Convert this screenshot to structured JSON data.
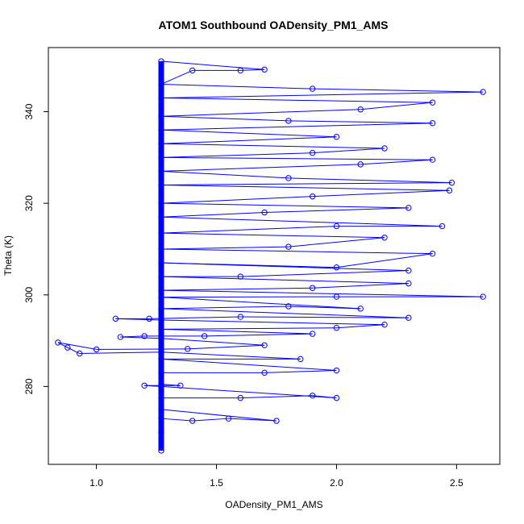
{
  "chart_data": {
    "type": "scatter",
    "title": "ATOM1 Southbound OADensity_PM1_AMS",
    "xlabel": "OADensity_PM1_AMS",
    "ylabel": "Theta (K)",
    "xlim": [
      0.8,
      2.68
    ],
    "ylim": [
      263,
      354
    ],
    "x_ticks": [
      "1.0",
      "1.5",
      "2.0",
      "2.5"
    ],
    "y_ticks": [
      "280",
      "300",
      "320",
      "340"
    ],
    "grid": false,
    "legend": "none",
    "color": "#0000ff",
    "marker": "open-circle",
    "connected": true,
    "baseline_x": 1.27,
    "baseline_y_range": [
      266,
      351
    ],
    "series": [
      {
        "points": [
          [
            1.27,
            266
          ],
          [
            1.27,
            270
          ],
          [
            1.27,
            273
          ],
          [
            1.4,
            272.5
          ],
          [
            1.55,
            273
          ],
          [
            1.75,
            272.5
          ],
          [
            1.27,
            275
          ],
          [
            1.27,
            277.5
          ],
          [
            1.6,
            277.5
          ],
          [
            1.9,
            278
          ],
          [
            2.0,
            277.5
          ],
          [
            1.27,
            280
          ],
          [
            1.2,
            280.2
          ],
          [
            1.35,
            280.2
          ],
          [
            1.27,
            280.5
          ],
          [
            1.27,
            283
          ],
          [
            1.7,
            283
          ],
          [
            2.0,
            283.5
          ],
          [
            1.27,
            286
          ],
          [
            1.85,
            286
          ],
          [
            1.27,
            287.5
          ],
          [
            0.93,
            287.2
          ],
          [
            0.88,
            288.5
          ],
          [
            0.84,
            289.6
          ],
          [
            1.0,
            288.1
          ],
          [
            1.38,
            288.2
          ],
          [
            1.7,
            289
          ],
          [
            1.27,
            290.5
          ],
          [
            1.1,
            290.8
          ],
          [
            1.2,
            291
          ],
          [
            1.45,
            291
          ],
          [
            1.9,
            291.5
          ],
          [
            1.27,
            292.5
          ],
          [
            2.0,
            292.8
          ],
          [
            2.2,
            293.5
          ],
          [
            1.27,
            294.5
          ],
          [
            1.08,
            294.8
          ],
          [
            1.22,
            294.8
          ],
          [
            1.6,
            295.2
          ],
          [
            2.3,
            295
          ],
          [
            1.27,
            297
          ],
          [
            1.8,
            297.5
          ],
          [
            2.1,
            297
          ],
          [
            1.27,
            299.5
          ],
          [
            2.0,
            299.6
          ],
          [
            2.61,
            299.6
          ],
          [
            1.27,
            301
          ],
          [
            1.9,
            301.5
          ],
          [
            2.3,
            302.5
          ],
          [
            1.27,
            304
          ],
          [
            1.6,
            304
          ],
          [
            2.3,
            305.3
          ],
          [
            1.27,
            307
          ],
          [
            2.0,
            306
          ],
          [
            2.4,
            309
          ],
          [
            1.27,
            310
          ],
          [
            1.8,
            310.5
          ],
          [
            2.2,
            312.5
          ],
          [
            1.27,
            313.5
          ],
          [
            2.0,
            315
          ],
          [
            2.44,
            315
          ],
          [
            1.27,
            317
          ],
          [
            1.7,
            318
          ],
          [
            2.3,
            319
          ],
          [
            1.27,
            320
          ],
          [
            1.9,
            321.5
          ],
          [
            2.47,
            322.8
          ],
          [
            1.27,
            324
          ],
          [
            2.48,
            324.5
          ],
          [
            1.8,
            325.5
          ],
          [
            1.27,
            327
          ],
          [
            2.1,
            328.5
          ],
          [
            2.4,
            329.5
          ],
          [
            1.27,
            330
          ],
          [
            1.9,
            331
          ],
          [
            2.2,
            332
          ],
          [
            1.27,
            333
          ],
          [
            2.0,
            334.5
          ],
          [
            1.27,
            336
          ],
          [
            2.4,
            337.5
          ],
          [
            1.8,
            338
          ],
          [
            1.27,
            339
          ],
          [
            2.1,
            340.5
          ],
          [
            2.4,
            342
          ],
          [
            1.27,
            343
          ],
          [
            2.61,
            344.3
          ],
          [
            1.9,
            345
          ],
          [
            1.27,
            346
          ],
          [
            1.4,
            349
          ],
          [
            1.6,
            349
          ],
          [
            1.7,
            349.2
          ],
          [
            1.27,
            351
          ]
        ]
      }
    ]
  }
}
